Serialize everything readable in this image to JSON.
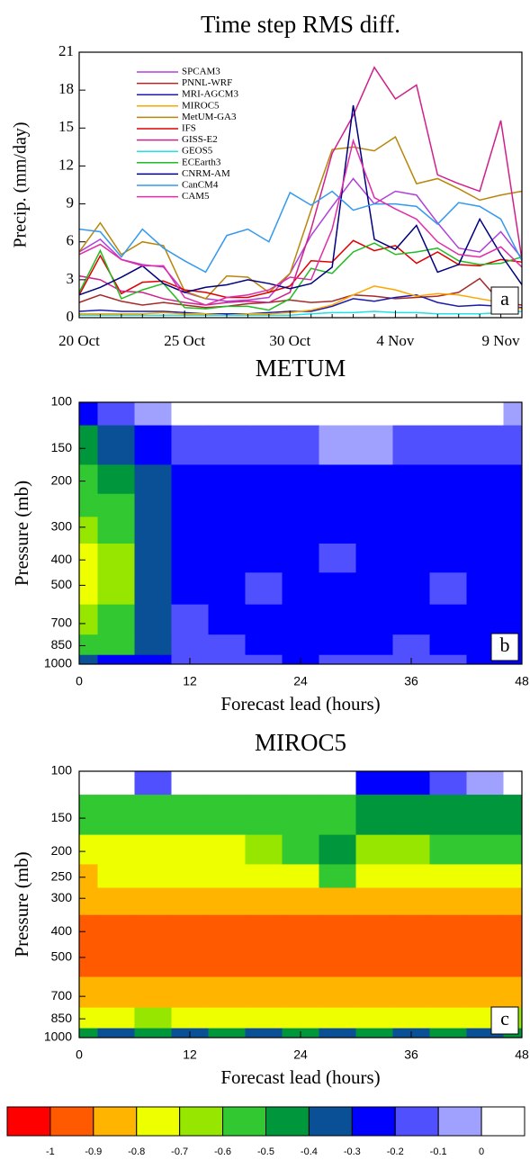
{
  "chart_data": [
    {
      "type": "line",
      "title": "Time step RMS diff.",
      "ylabel": "Precip. (mm/day)",
      "panel_label": "a",
      "categories": [
        "20 Oct",
        null,
        null,
        null,
        null,
        "25 Oct",
        null,
        null,
        null,
        null,
        "30 Oct",
        null,
        null,
        null,
        null,
        "4 Nov",
        null,
        null,
        null,
        null,
        "9 Nov",
        null
      ],
      "ylim": [
        0,
        21
      ],
      "yticks": [
        0,
        3,
        6,
        9,
        12,
        15,
        18,
        21
      ],
      "series": [
        {
          "name": "SPCAM3",
          "color": "#b040d8",
          "values": [
            5.2,
            6.2,
            4.6,
            4.2,
            4.0,
            2.0,
            1.5,
            1.3,
            1.4,
            1.6,
            3.5,
            6.5,
            8.8,
            11.0,
            9.0,
            10.0,
            9.7,
            7.5,
            5.5,
            5.2,
            6.8,
            4.7
          ]
        },
        {
          "name": "PNNL-WRF",
          "color": "#a52a2a",
          "values": [
            1.2,
            1.8,
            1.3,
            1.0,
            1.2,
            1.0,
            0.8,
            0.9,
            1.1,
            1.2,
            1.4,
            1.2,
            1.3,
            1.8,
            1.7,
            1.5,
            1.6,
            1.7,
            2.0,
            3.1,
            1.2,
            1.0
          ]
        },
        {
          "name": "MRI-AGCM3",
          "color": "#1a1ab0",
          "values": [
            0.5,
            0.6,
            0.5,
            0.5,
            0.5,
            0.4,
            0.3,
            0.3,
            0.3,
            0.4,
            0.5,
            0.5,
            0.9,
            1.5,
            1.3,
            1.6,
            1.8,
            1.2,
            0.9,
            1.0,
            0.9,
            0.8
          ]
        },
        {
          "name": "MIROC5",
          "color": "#ffa500",
          "values": [
            0.3,
            0.3,
            0.3,
            0.3,
            0.4,
            0.3,
            0.3,
            0.2,
            0.3,
            0.3,
            0.4,
            0.6,
            1.0,
            1.8,
            2.5,
            2.2,
            1.7,
            1.9,
            1.8,
            1.5,
            1.2,
            0.7
          ]
        },
        {
          "name": "MetUM-GA3",
          "color": "#b8860b",
          "values": [
            5.2,
            7.5,
            5.0,
            6.0,
            5.7,
            2.1,
            1.5,
            3.3,
            3.2,
            2.0,
            3.5,
            8.5,
            13.3,
            13.5,
            13.2,
            14.3,
            10.6,
            11.0,
            10.2,
            9.3,
            9.7,
            10.0
          ]
        },
        {
          "name": "IFS",
          "color": "#e00000",
          "values": [
            1.8,
            4.9,
            1.9,
            2.8,
            2.9,
            2.2,
            2.0,
            1.6,
            1.6,
            2.0,
            2.5,
            4.5,
            4.4,
            6.1,
            5.3,
            5.7,
            4.3,
            5.2,
            4.2,
            4.1,
            4.6,
            4.4
          ]
        },
        {
          "name": "GISS-E2",
          "color": "#d0208a",
          "values": [
            3.3,
            3.0,
            2.1,
            2.0,
            1.5,
            1.2,
            1.0,
            1.2,
            1.3,
            1.2,
            2.0,
            7.0,
            13.0,
            16.0,
            19.8,
            17.3,
            18.4,
            11.3,
            10.6,
            10.0,
            15.6,
            4.6
          ]
        },
        {
          "name": "GEOS5",
          "color": "#20e0e8",
          "values": [
            0.2,
            0.2,
            0.2,
            0.2,
            0.2,
            0.2,
            0.2,
            0.2,
            0.2,
            0.2,
            0.2,
            0.3,
            0.4,
            0.4,
            0.5,
            0.4,
            0.4,
            0.3,
            0.3,
            0.3,
            0.4,
            0.5
          ]
        },
        {
          "name": "ECEarth3",
          "color": "#22bb22",
          "values": [
            2.0,
            5.3,
            1.5,
            2.2,
            2.7,
            0.8,
            0.7,
            0.9,
            0.9,
            0.6,
            1.5,
            3.9,
            3.5,
            5.2,
            5.9,
            5.0,
            5.2,
            5.5,
            4.5,
            4.2,
            4.3,
            4.8
          ]
        },
        {
          "name": "CNRM-AM",
          "color": "#000080",
          "values": [
            1.8,
            2.4,
            3.2,
            4.1,
            2.7,
            2.0,
            2.4,
            2.6,
            3.0,
            2.7,
            2.3,
            2.7,
            4.0,
            16.8,
            6.2,
            5.4,
            7.3,
            3.6,
            4.2,
            7.8,
            5.0,
            2.6
          ]
        },
        {
          "name": "CanCM4",
          "color": "#3399ee",
          "values": [
            7.0,
            6.8,
            4.8,
            7.0,
            5.5,
            4.5,
            3.6,
            6.5,
            7.0,
            6.0,
            9.9,
            8.9,
            10.0,
            8.5,
            9.0,
            9.0,
            8.8,
            7.4,
            9.1,
            8.8,
            7.8,
            4.5
          ]
        },
        {
          "name": "CAM5",
          "color": "#e02ca8",
          "values": [
            5.0,
            5.8,
            4.6,
            4.1,
            4.1,
            1.6,
            1.0,
            1.6,
            1.8,
            2.2,
            3.2,
            3.0,
            7.0,
            14.0,
            9.5,
            8.6,
            7.8,
            6.0,
            5.0,
            4.8,
            5.6,
            4.0
          ]
        }
      ]
    },
    {
      "type": "contour",
      "title": "METUM",
      "xlabel": "Forecast lead (hours)",
      "ylabel": "Pressure (mb)",
      "panel_label": "b",
      "xlim": [
        0,
        48
      ],
      "xticks": [
        0,
        12,
        24,
        36,
        48
      ],
      "ylim": [
        1000,
        100
      ],
      "log_y": true,
      "yticks": [
        100,
        150,
        200,
        300,
        400,
        500,
        700,
        850,
        1000
      ],
      "x": [
        0,
        4,
        8,
        12,
        16,
        20,
        24,
        28,
        32,
        36,
        40,
        44,
        48
      ],
      "y": [
        100,
        150,
        200,
        250,
        300,
        400,
        500,
        700,
        850,
        1000
      ],
      "z": [
        [
          -0.25,
          -0.15,
          -0.05,
          0.05,
          0.05,
          0.05,
          0.05,
          0.05,
          0.05,
          0.05,
          0.05,
          0.05,
          -0.05
        ],
        [
          -0.45,
          -0.35,
          -0.25,
          -0.15,
          -0.15,
          -0.15,
          -0.15,
          -0.05,
          -0.05,
          -0.15,
          -0.15,
          -0.15,
          -0.15
        ],
        [
          -0.55,
          -0.45,
          -0.35,
          -0.25,
          -0.25,
          -0.25,
          -0.25,
          -0.25,
          -0.25,
          -0.25,
          -0.25,
          -0.25,
          -0.25
        ],
        [
          -0.55,
          -0.55,
          -0.35,
          -0.25,
          -0.25,
          -0.25,
          -0.25,
          -0.25,
          -0.25,
          -0.25,
          -0.25,
          -0.25,
          -0.25
        ],
        [
          -0.65,
          -0.55,
          -0.35,
          -0.25,
          -0.25,
          -0.25,
          -0.25,
          -0.25,
          -0.25,
          -0.25,
          -0.25,
          -0.25,
          -0.25
        ],
        [
          -0.75,
          -0.65,
          -0.35,
          -0.25,
          -0.25,
          -0.25,
          -0.25,
          -0.15,
          -0.25,
          -0.25,
          -0.25,
          -0.25,
          -0.25
        ],
        [
          -0.75,
          -0.65,
          -0.35,
          -0.25,
          -0.25,
          -0.15,
          -0.25,
          -0.25,
          -0.25,
          -0.25,
          -0.15,
          -0.25,
          -0.25
        ],
        [
          -0.65,
          -0.55,
          -0.35,
          -0.15,
          -0.25,
          -0.25,
          -0.25,
          -0.25,
          -0.25,
          -0.25,
          -0.25,
          -0.25,
          -0.25
        ],
        [
          -0.55,
          -0.55,
          -0.35,
          -0.15,
          -0.15,
          -0.25,
          -0.25,
          -0.25,
          -0.25,
          -0.15,
          -0.25,
          -0.25,
          -0.25
        ],
        [
          -0.35,
          -0.25,
          -0.25,
          -0.15,
          -0.15,
          -0.15,
          -0.25,
          -0.15,
          -0.15,
          -0.15,
          -0.15,
          -0.25,
          -0.25
        ]
      ]
    },
    {
      "type": "contour",
      "title": "MIROC5",
      "xlabel": "Forecast lead (hours)",
      "ylabel": "Pressure (mb)",
      "panel_label": "c",
      "xlim": [
        0,
        48
      ],
      "xticks": [
        0,
        12,
        24,
        36,
        48
      ],
      "ylim": [
        1000,
        100
      ],
      "log_y": true,
      "yticks": [
        100,
        150,
        200,
        250,
        300,
        400,
        500,
        700,
        850,
        1000
      ],
      "x": [
        0,
        4,
        8,
        12,
        16,
        20,
        24,
        28,
        32,
        36,
        40,
        44,
        48
      ],
      "y": [
        100,
        150,
        200,
        250,
        300,
        400,
        500,
        700,
        850,
        1000
      ],
      "z": [
        [
          0.05,
          0.05,
          -0.15,
          0.05,
          0.05,
          0.05,
          0.05,
          0.05,
          -0.25,
          -0.25,
          -0.15,
          -0.05,
          0.05
        ],
        [
          -0.55,
          -0.55,
          -0.55,
          -0.55,
          -0.55,
          -0.55,
          -0.55,
          -0.55,
          -0.45,
          -0.45,
          -0.45,
          -0.45,
          -0.45
        ],
        [
          -0.75,
          -0.75,
          -0.75,
          -0.75,
          -0.75,
          -0.65,
          -0.55,
          -0.45,
          -0.65,
          -0.65,
          -0.55,
          -0.55,
          -0.55
        ],
        [
          -0.85,
          -0.75,
          -0.75,
          -0.75,
          -0.75,
          -0.75,
          -0.75,
          -0.55,
          -0.75,
          -0.75,
          -0.75,
          -0.75,
          -0.75
        ],
        [
          -0.85,
          -0.85,
          -0.85,
          -0.85,
          -0.85,
          -0.85,
          -0.85,
          -0.85,
          -0.85,
          -0.85,
          -0.85,
          -0.85,
          -0.85
        ],
        [
          -0.95,
          -0.95,
          -0.95,
          -0.95,
          -0.95,
          -0.95,
          -0.95,
          -0.95,
          -0.95,
          -0.95,
          -0.95,
          -0.95,
          -0.95
        ],
        [
          -0.95,
          -0.95,
          -0.95,
          -0.95,
          -0.95,
          -0.95,
          -0.95,
          -0.95,
          -0.95,
          -0.95,
          -0.95,
          -0.95,
          -0.95
        ],
        [
          -0.85,
          -0.85,
          -0.85,
          -0.85,
          -0.85,
          -0.85,
          -0.85,
          -0.85,
          -0.85,
          -0.85,
          -0.85,
          -0.85,
          -0.85
        ],
        [
          -0.75,
          -0.75,
          -0.65,
          -0.75,
          -0.75,
          -0.75,
          -0.75,
          -0.75,
          -0.75,
          -0.75,
          -0.75,
          -0.75,
          -0.65
        ],
        [
          -0.45,
          -0.35,
          -0.45,
          -0.35,
          -0.45,
          -0.35,
          -0.45,
          -0.35,
          -0.45,
          -0.35,
          -0.45,
          -0.35,
          -0.45
        ]
      ]
    },
    {
      "type": "colorbar",
      "levels": [
        -1,
        -0.9,
        -0.8,
        -0.7,
        -0.6,
        -0.5,
        -0.4,
        -0.3,
        -0.2,
        -0.1,
        0
      ],
      "colors": [
        "#ff0000",
        "#ff5a00",
        "#ffb400",
        "#eeff00",
        "#96e600",
        "#32c832",
        "#00963c",
        "#0a5096",
        "#0000ff",
        "#5050ff",
        "#a0a0ff",
        "#ffffff"
      ]
    }
  ]
}
